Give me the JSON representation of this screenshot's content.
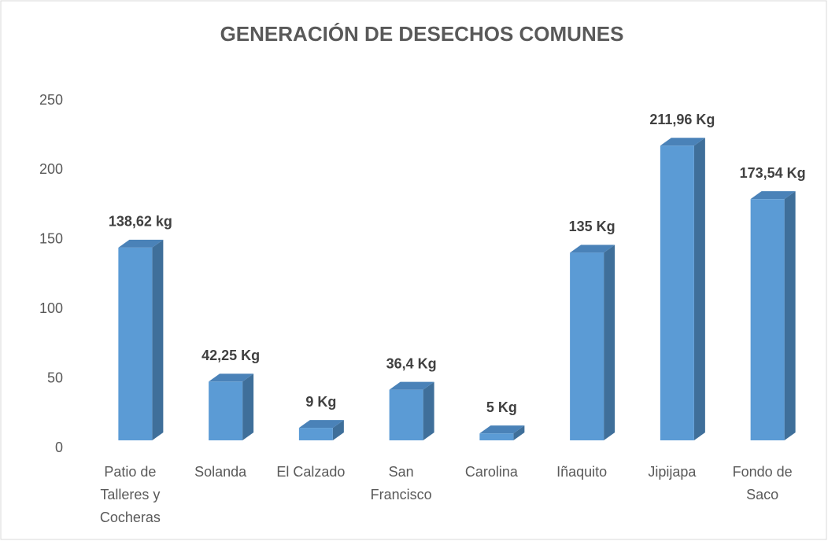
{
  "chart_data": {
    "type": "bar",
    "title": "GENERACIÓN DE DESECHOS COMUNES",
    "categories": [
      "Patio de Talleres y Cocheras",
      "Solanda",
      "El Calzado",
      "San Francisco",
      "Carolina",
      "Iñaquito",
      "Jipijapa",
      "Fondo de Saco"
    ],
    "values": [
      138.62,
      42.25,
      9,
      36.4,
      5,
      135,
      211.96,
      173.54
    ],
    "value_labels": [
      "138,62 kg",
      "42,25 Kg",
      "9 Kg",
      "36,4 Kg",
      "5 Kg",
      "135 Kg",
      "211,96 Kg",
      "173,54 Kg"
    ],
    "color": "#5b9bd5",
    "ylim": [
      0,
      250
    ],
    "yticks": [
      0,
      50,
      100,
      150,
      200,
      250
    ],
    "grid": false
  }
}
